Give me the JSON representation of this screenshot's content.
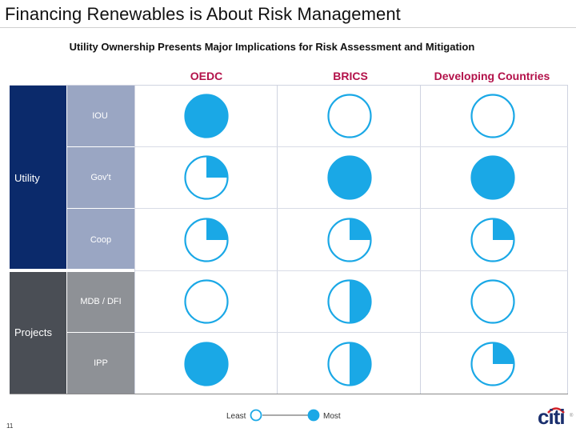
{
  "title": "Financing Renewables is About Risk Management",
  "subtitle": "Utility Ownership Presents Major Implications for Risk Assessment and Mitigation",
  "columns": [
    "OEDC",
    "BRICS",
    "Developing Countries"
  ],
  "groups": {
    "utility": {
      "label": "Utility",
      "rows": [
        "IOU",
        "Gov't",
        "Coop"
      ]
    },
    "projects": {
      "label": "Projects",
      "rows": [
        "MDB / DFI",
        "IPP"
      ]
    }
  },
  "ratings": {
    "scale": "quarters filled (0 = Least, 4 = Most)",
    "matrix": [
      [
        4,
        0,
        0
      ],
      [
        1,
        4,
        4
      ],
      [
        1,
        1,
        1
      ],
      [
        0,
        2,
        0
      ],
      [
        4,
        2,
        1
      ]
    ]
  },
  "legend": {
    "least": "Least",
    "most": "Most"
  },
  "page_number": "11",
  "logo": "citi",
  "colors": {
    "harvey_fill": "#1aa8e6",
    "harvey_stroke": "#1aa8e6",
    "column_header": "#b3124a",
    "utility_block": "#0b2a6b",
    "utility_sub": "#9aa6c3",
    "projects_block": "#4a4e55",
    "projects_sub": "#8e9196",
    "logo": "#1a2f6e"
  }
}
